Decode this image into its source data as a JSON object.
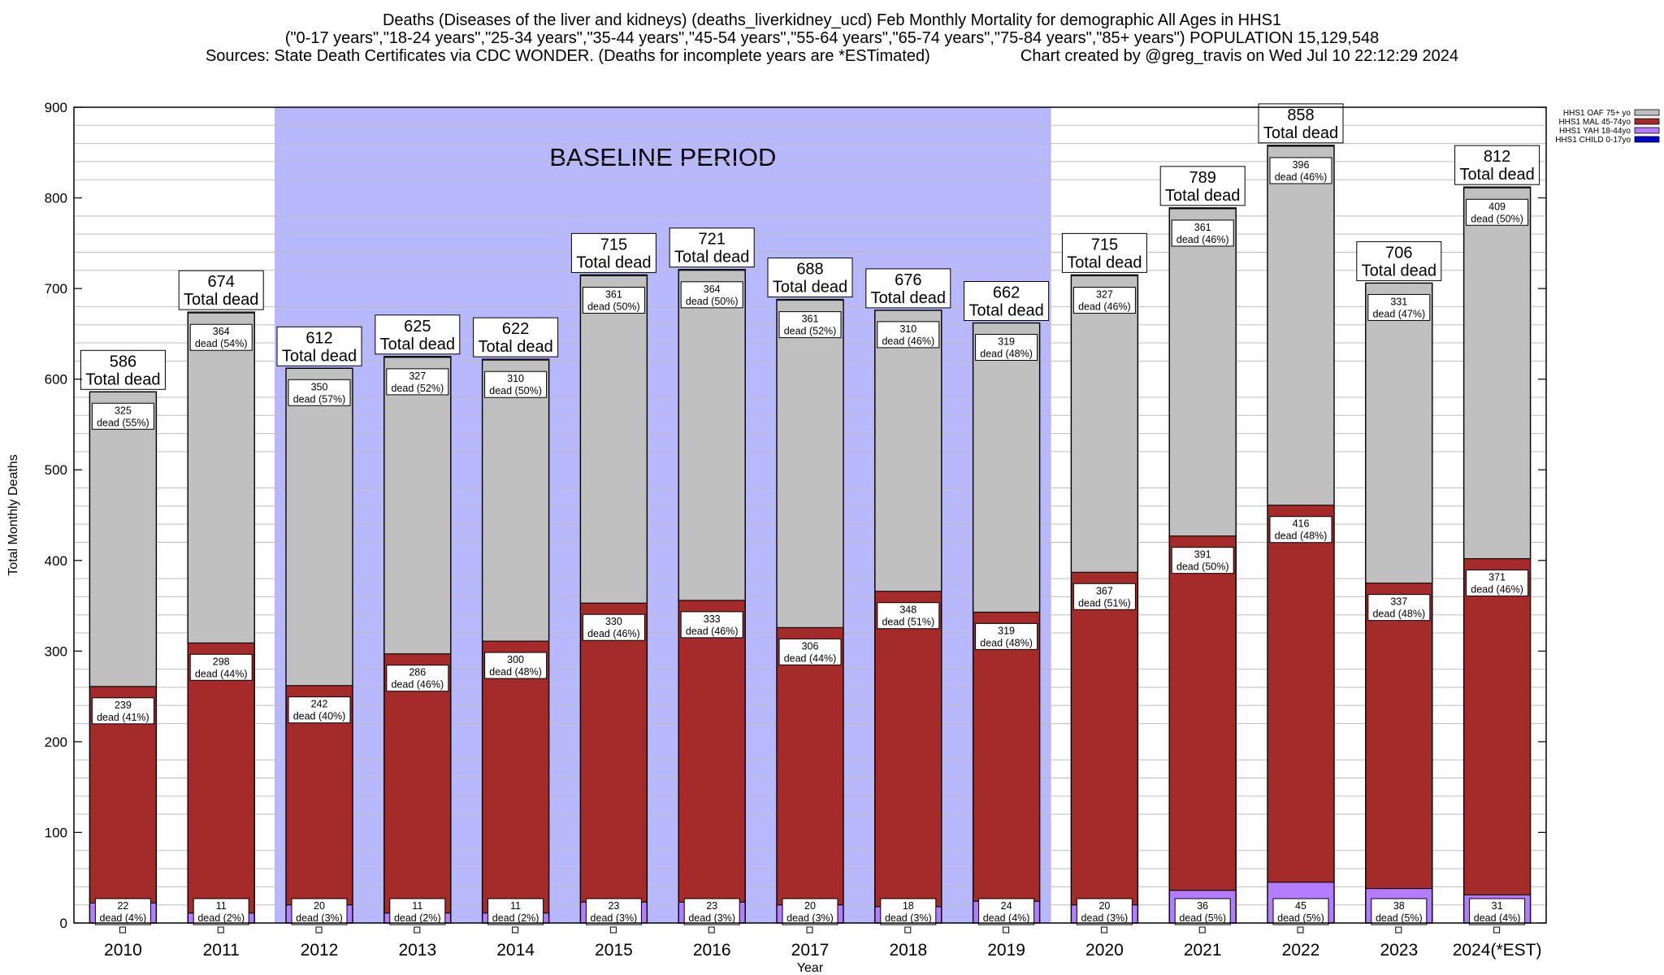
{
  "header": {
    "line1": "Deaths (Diseases of the liver and kidneys) (deaths_liverkidney_ucd) Feb Monthly Mortality for demographic All Ages in HHS1",
    "line2": "(\"0-17 years\",\"18-24 years\",\"25-34 years\",\"35-44 years\",\"45-54 years\",\"55-64 years\",\"65-74 years\",\"75-84 years\",\"85+ years\") POPULATION 15,129,548",
    "line3": "Sources: State Death Certificates via CDC WONDER. (Deaths for incomplete years are *ESTimated)                    Chart created by @greg_travis on Wed Jul 10 22:12:29 2024"
  },
  "chart_data": {
    "type": "bar",
    "stacked": true,
    "xlabel": "Year",
    "ylabel": "Total Monthly Deaths",
    "ylim": [
      0,
      900
    ],
    "yticks": [
      0,
      100,
      200,
      300,
      400,
      500,
      600,
      700,
      800,
      900
    ],
    "categories": [
      "2010",
      "2011",
      "2012",
      "2013",
      "2014",
      "2015",
      "2016",
      "2017",
      "2018",
      "2019",
      "2020",
      "2021",
      "2022",
      "2023",
      "2024(*EST)"
    ],
    "series": [
      {
        "name": "HHS1 CHILD 0-17yo",
        "color": "#0000cc",
        "values": [
          0,
          0,
          0,
          0,
          0,
          0,
          0,
          0,
          0,
          0,
          0,
          0,
          0,
          0,
          0
        ],
        "labels": [
          "",
          "",
          "",
          "",
          "",
          "",
          "",
          "",
          "",
          "",
          "",
          "",
          "",
          "",
          ""
        ]
      },
      {
        "name": "HHS1 YAH 18-44yo",
        "color": "#b47cff",
        "values": [
          22,
          11,
          20,
          11,
          11,
          23,
          23,
          20,
          18,
          24,
          20,
          36,
          45,
          38,
          31
        ],
        "labels": [
          "(4%)",
          "(2%)",
          "(3%)",
          "(2%)",
          "(2%)",
          "(3%)",
          "(3%)",
          "(3%)",
          "(3%)",
          "(4%)",
          "(3%)",
          "(5%)",
          "(5%)",
          "(5%)",
          "(4%)"
        ]
      },
      {
        "name": "HHS1 MAL 45-74yo",
        "color": "#a52a2a",
        "values": [
          239,
          298,
          242,
          286,
          300,
          330,
          333,
          306,
          348,
          319,
          367,
          391,
          416,
          337,
          371
        ],
        "labels": [
          "(41%)",
          "(44%)",
          "(40%)",
          "(46%)",
          "(48%)",
          "(46%)",
          "(46%)",
          "(44%)",
          "(51%)",
          "(48%)",
          "(51%)",
          "(50%)",
          "(48%)",
          "(48%)",
          "(46%)"
        ]
      },
      {
        "name": "HHS1 OAF 75+ yo",
        "color": "#c0c0c0",
        "values": [
          325,
          364,
          350,
          327,
          310,
          361,
          364,
          361,
          310,
          319,
          327,
          361,
          396,
          331,
          409
        ],
        "labels": [
          "(55%)",
          "(54%)",
          "(57%)",
          "(52%)",
          "(50%)",
          "(50%)",
          "(50%)",
          "(52%)",
          "(46%)",
          "(48%)",
          "(46%)",
          "(46%)",
          "(46%)",
          "(47%)",
          "(50%)"
        ]
      }
    ],
    "totals": [
      586,
      674,
      612,
      625,
      622,
      715,
      721,
      688,
      676,
      662,
      715,
      789,
      858,
      706,
      812
    ],
    "total_suffix": "Total dead",
    "segment_label_word": "dead",
    "legend_order": [
      "HHS1 OAF 75+ yo",
      "HHS1 MAL 45-74yo",
      "HHS1 YAH 18-44yo",
      "HHS1 CHILD 0-17yo"
    ],
    "legend_position": "top-right",
    "baseline": {
      "label": "BASELINE PERIOD",
      "from": "2012",
      "to": "2019",
      "color": "#b8b8ff"
    },
    "grid": "horizontal minor lines every 20"
  }
}
